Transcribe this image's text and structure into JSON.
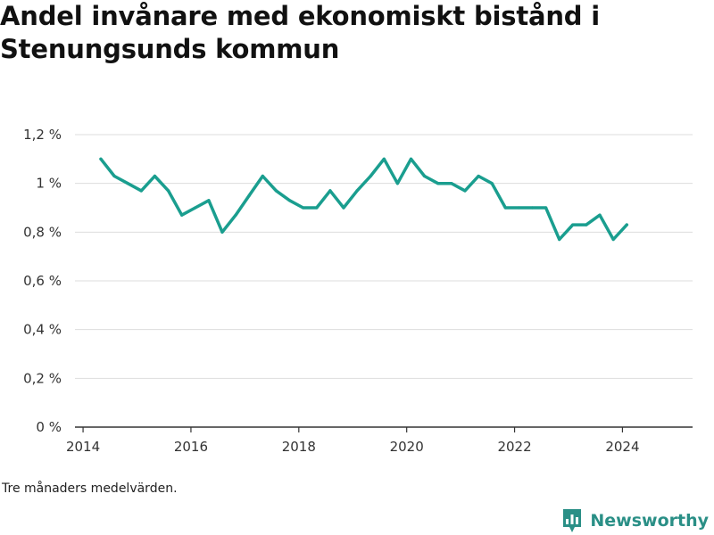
{
  "title": "Andel invånare med ekonomiskt bistånd i Stenungsunds kommun",
  "note": "Tre månaders medelvärden.",
  "brand": {
    "name": "Newsworthy",
    "icon": "bar-chart-logo-icon"
  },
  "colors": {
    "line": "#1a9e8f",
    "grid": "#dddddd",
    "axis": "#333333",
    "brand": "#2a8f86"
  },
  "chart_data": {
    "type": "line",
    "title": "Andel invånare med ekonomiskt bistånd i Stenungsunds kommun",
    "xlabel": "",
    "ylabel": "",
    "xlim": [
      2013.85,
      2025.3
    ],
    "ylim": [
      0,
      1.2
    ],
    "x_ticks": [
      {
        "value": 2014,
        "label": "2014"
      },
      {
        "value": 2016,
        "label": "2016"
      },
      {
        "value": 2018,
        "label": "2018"
      },
      {
        "value": 2020,
        "label": "2020"
      },
      {
        "value": 2022,
        "label": "2022"
      },
      {
        "value": 2024,
        "label": "2024"
      }
    ],
    "y_ticks": [
      {
        "value": 0,
        "label": "0 %"
      },
      {
        "value": 0.2,
        "label": "0,2 %"
      },
      {
        "value": 0.4,
        "label": "0,4 %"
      },
      {
        "value": 0.6,
        "label": "0,6 %"
      },
      {
        "value": 0.8,
        "label": "0,8 %"
      },
      {
        "value": 1.0,
        "label": "1 %"
      },
      {
        "value": 1.2,
        "label": "1,2 %"
      }
    ],
    "grid": true,
    "series": [
      {
        "x": [
          2014.33,
          2014.58,
          2014.83,
          2015.08,
          2015.33,
          2015.58,
          2015.83,
          2016.08,
          2016.33,
          2016.58,
          2016.83,
          2017.08,
          2017.33,
          2017.58,
          2017.83,
          2018.08,
          2018.33,
          2018.58,
          2018.83,
          2019.08,
          2019.33,
          2019.58,
          2019.83,
          2020.08,
          2020.33,
          2020.58,
          2020.83,
          2021.08,
          2021.33,
          2021.58,
          2021.83,
          2022.08,
          2022.33,
          2022.58,
          2022.83,
          2023.08,
          2023.33,
          2023.58,
          2023.83,
          2024.08
        ],
        "values": [
          1.1,
          1.03,
          1.0,
          0.97,
          1.03,
          0.97,
          0.87,
          0.9,
          0.93,
          0.8,
          0.87,
          0.95,
          1.03,
          0.97,
          0.93,
          0.9,
          0.9,
          0.97,
          0.9,
          0.97,
          1.03,
          1.1,
          1.0,
          1.1,
          1.03,
          1.0,
          1.0,
          0.97,
          1.03,
          1.0,
          0.9,
          0.9,
          0.9,
          0.9,
          0.77,
          0.83,
          0.83,
          0.87,
          0.77,
          0.83
        ]
      }
    ]
  }
}
